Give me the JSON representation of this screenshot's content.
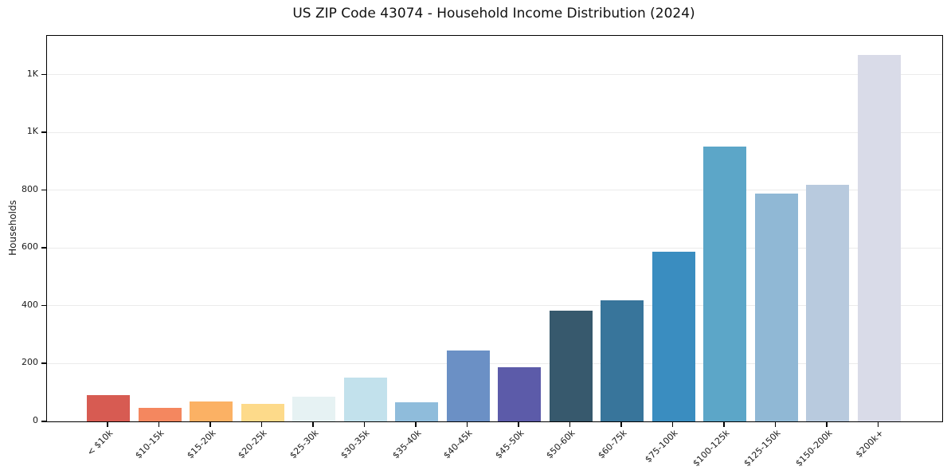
{
  "chart_data": {
    "type": "bar",
    "title": "US ZIP Code 43074 - Household Income Distribution (2024)",
    "xlabel": "",
    "ylabel": "Households",
    "categories": [
      "< $10k",
      "$10-15k",
      "$15-20k",
      "$20-25k",
      "$25-30k",
      "$30-35k",
      "$35-40k",
      "$40-45k",
      "$45-50k",
      "$50-60k",
      "$60-75k",
      "$75-100k",
      "$100-125k",
      "$125-150k",
      "$150-200k",
      "$200k+"
    ],
    "values": [
      90,
      48,
      70,
      60,
      86,
      152,
      66,
      244,
      188,
      384,
      418,
      586,
      950,
      788,
      818,
      1268
    ],
    "bar_colors": [
      "#d75b52",
      "#f4875f",
      "#fbb164",
      "#fdda8a",
      "#e6f2f3",
      "#c2e1ec",
      "#8fbcdb",
      "#6b90c5",
      "#5c5ba9",
      "#37596d",
      "#38759b",
      "#3a8dc0",
      "#5ca6c8",
      "#90b8d5",
      "#b8cade",
      "#d9dbe8"
    ],
    "ylim": [
      0,
      1334
    ],
    "yticks": [
      {
        "value": 0,
        "label": "0"
      },
      {
        "value": 200,
        "label": "200"
      },
      {
        "value": 400,
        "label": "400"
      },
      {
        "value": 600,
        "label": "600"
      },
      {
        "value": 800,
        "label": "800"
      },
      {
        "value": 1000,
        "label": "1K"
      },
      {
        "value": 1200,
        "label": "1K"
      }
    ],
    "grid": "horizontal",
    "legend_position": "none",
    "colors": {
      "spine": "#000000",
      "gridline": "#ebebeb",
      "text": "#1a1a1a",
      "background": "#ffffff"
    }
  }
}
